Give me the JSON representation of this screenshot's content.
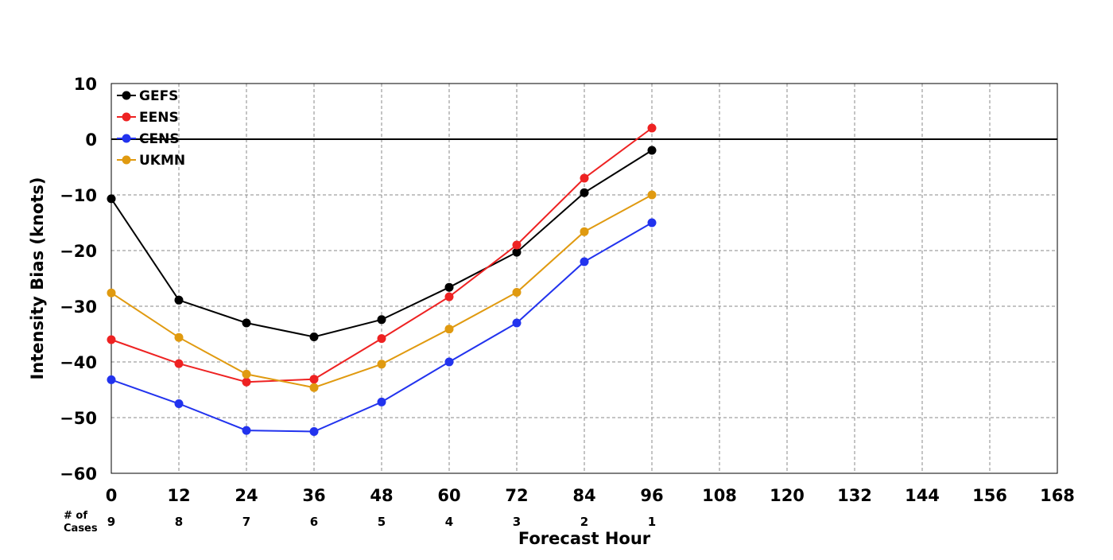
{
  "chart_data": {
    "type": "line",
    "title": "",
    "xlabel": "Forecast Hour",
    "ylabel": "Intensity Bias (knots)",
    "xlim": [
      0,
      168
    ],
    "ylim": [
      -60,
      10
    ],
    "xticks": [
      0,
      12,
      24,
      36,
      48,
      60,
      72,
      84,
      96,
      108,
      120,
      132,
      144,
      156,
      168
    ],
    "yticks": [
      10,
      0,
      -10,
      -20,
      -30,
      -40,
      -50,
      -60
    ],
    "grid": true,
    "legend_position": "top-left",
    "zero_line": true,
    "cases_label": "# of\nCases",
    "cases_label_line1": "# of",
    "cases_label_line2": "Cases",
    "cases": {
      "x": [
        0,
        12,
        24,
        36,
        48,
        60,
        72,
        84,
        96
      ],
      "values": [
        9,
        8,
        7,
        6,
        5,
        4,
        3,
        2,
        1
      ]
    },
    "x": [
      0,
      12,
      24,
      36,
      48,
      60,
      72,
      84,
      96
    ],
    "series": [
      {
        "name": "GEFS",
        "color": "#000000",
        "values": [
          -10.7,
          -28.9,
          -33.0,
          -35.5,
          -32.4,
          -26.6,
          -20.3,
          -9.6,
          -2.0
        ]
      },
      {
        "name": "EENS",
        "color": "#ee2222",
        "values": [
          -36.0,
          -40.3,
          -43.6,
          -43.1,
          -35.8,
          -28.3,
          -19.0,
          -7.0,
          2.0
        ]
      },
      {
        "name": "CENS",
        "color": "#2233ee",
        "values": [
          -43.2,
          -47.5,
          -52.3,
          -52.5,
          -47.2,
          -40.0,
          -33.0,
          -22.0,
          -15.0
        ]
      },
      {
        "name": "UKMN",
        "color": "#e09a10",
        "values": [
          -27.6,
          -35.6,
          -42.2,
          -44.6,
          -40.4,
          -34.1,
          -27.5,
          -16.6,
          -10.0
        ]
      }
    ]
  }
}
